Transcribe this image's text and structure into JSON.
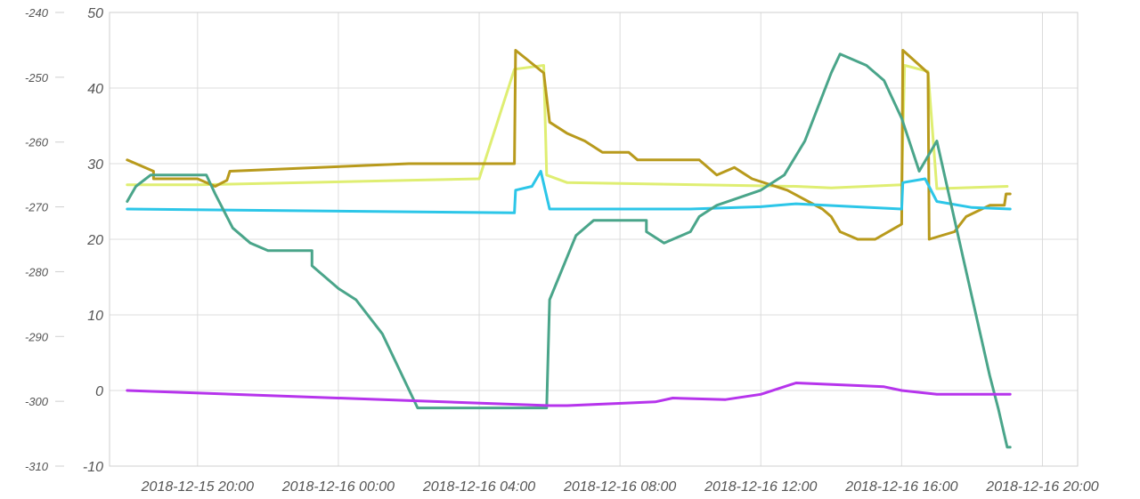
{
  "chart_data": {
    "type": "line",
    "title": "",
    "xlabel": "",
    "ylabel": "",
    "grid": true,
    "legend": "none",
    "x_unit": "time",
    "x_range": [
      "2018-12-15 17:30",
      "2018-12-16 21:00"
    ],
    "x_ticks": [
      "2018-12-15 20:00",
      "2018-12-16 00:00",
      "2018-12-16 04:00",
      "2018-12-16 08:00",
      "2018-12-16 12:00",
      "2018-12-16 16:00",
      "2018-12-16 20:00"
    ],
    "y_left": {
      "min": -310,
      "max": -240,
      "ticks": [
        "-240",
        "-250",
        "-260",
        "-270",
        "-280",
        "-290",
        "-300",
        "-310"
      ],
      "tick_values": [
        -240,
        -250,
        -260,
        -270,
        -280,
        -290,
        -300,
        -310
      ]
    },
    "y_right": {
      "min": -10,
      "max": 50,
      "ticks": [
        "50",
        "40",
        "30",
        "20",
        "10",
        "0",
        "-10"
      ],
      "tick_values": [
        50,
        40,
        30,
        20,
        10,
        0,
        -10
      ]
    },
    "series": [
      {
        "key": "light-yellow",
        "color": "#dfee72",
        "axis": "right",
        "points": [
          [
            "2018-12-15 18:00",
            27.2
          ],
          [
            "2018-12-15 20:00",
            27.2
          ],
          [
            "2018-12-16 04:00",
            28.0
          ],
          [
            "2018-12-16 05:00",
            42.5
          ],
          [
            "2018-12-16 05:50",
            43.0
          ],
          [
            "2018-12-16 05:55",
            28.5
          ],
          [
            "2018-12-16 06:30",
            27.5
          ],
          [
            "2018-12-16 13:00",
            27.0
          ],
          [
            "2018-12-16 14:00",
            26.8
          ],
          [
            "2018-12-16 16:00",
            27.2
          ],
          [
            "2018-12-16 16:05",
            43.0
          ],
          [
            "2018-12-16 16:45",
            42.2
          ],
          [
            "2018-12-16 17:00",
            26.7
          ],
          [
            "2018-12-16 19:00",
            27.0
          ]
        ]
      },
      {
        "key": "olive",
        "color": "#b89a1c",
        "axis": "right",
        "points": [
          [
            "2018-12-15 18:00",
            30.5
          ],
          [
            "2018-12-15 18:45",
            29.0
          ],
          [
            "2018-12-15 18:45",
            28.0
          ],
          [
            "2018-12-15 20:00",
            28.0
          ],
          [
            "2018-12-15 20:30",
            27.0
          ],
          [
            "2018-12-15 20:50",
            27.8
          ],
          [
            "2018-12-15 20:55",
            29.0
          ],
          [
            "2018-12-16 02:00",
            30.0
          ],
          [
            "2018-12-16 05:00",
            30.0
          ],
          [
            "2018-12-16 05:02",
            45.0
          ],
          [
            "2018-12-16 05:50",
            42.0
          ],
          [
            "2018-12-16 06:00",
            35.5
          ],
          [
            "2018-12-16 06:30",
            34.0
          ],
          [
            "2018-12-16 07:00",
            33.0
          ],
          [
            "2018-12-16 07:30",
            31.5
          ],
          [
            "2018-12-16 08:15",
            31.5
          ],
          [
            "2018-12-16 08:30",
            30.5
          ],
          [
            "2018-12-16 10:15",
            30.5
          ],
          [
            "2018-12-16 10:45",
            28.5
          ],
          [
            "2018-12-16 11:15",
            29.5
          ],
          [
            "2018-12-16 11:45",
            28.0
          ],
          [
            "2018-12-16 12:45",
            26.5
          ],
          [
            "2018-12-16 13:45",
            24.0
          ],
          [
            "2018-12-16 14:00",
            23.0
          ],
          [
            "2018-12-16 14:15",
            21.0
          ],
          [
            "2018-12-16 14:45",
            20.0
          ],
          [
            "2018-12-16 15:15",
            20.0
          ],
          [
            "2018-12-16 16:00",
            22.0
          ],
          [
            "2018-12-16 16:02",
            45.0
          ],
          [
            "2018-12-16 16:45",
            42.0
          ],
          [
            "2018-12-16 16:47",
            20.0
          ],
          [
            "2018-12-16 17:30",
            21.0
          ],
          [
            "2018-12-16 17:50",
            23.0
          ],
          [
            "2018-12-16 18:30",
            24.5
          ],
          [
            "2018-12-16 18:55",
            24.5
          ],
          [
            "2018-12-16 18:58",
            26.0
          ],
          [
            "2018-12-16 19:05",
            26.0
          ]
        ]
      },
      {
        "key": "cyan",
        "color": "#2cc6e8",
        "axis": "right",
        "points": [
          [
            "2018-12-15 18:00",
            24.0
          ],
          [
            "2018-12-16 05:00",
            23.5
          ],
          [
            "2018-12-16 05:02",
            26.5
          ],
          [
            "2018-12-16 05:30",
            27.0
          ],
          [
            "2018-12-16 05:45",
            29.0
          ],
          [
            "2018-12-16 06:00",
            24.0
          ],
          [
            "2018-12-16 10:00",
            24.0
          ],
          [
            "2018-12-16 12:00",
            24.3
          ],
          [
            "2018-12-16 13:00",
            24.7
          ],
          [
            "2018-12-16 16:00",
            24.0
          ],
          [
            "2018-12-16 16:02",
            27.5
          ],
          [
            "2018-12-16 16:40",
            28.0
          ],
          [
            "2018-12-16 17:00",
            25.0
          ],
          [
            "2018-12-16 18:00",
            24.2
          ],
          [
            "2018-12-16 19:05",
            24.0
          ]
        ]
      },
      {
        "key": "teal",
        "color": "#4aa58a",
        "axis": "right",
        "points": [
          [
            "2018-12-15 18:00",
            25.0
          ],
          [
            "2018-12-15 18:15",
            27.0
          ],
          [
            "2018-12-15 18:40",
            28.5
          ],
          [
            "2018-12-15 20:15",
            28.5
          ],
          [
            "2018-12-15 20:30",
            26.0
          ],
          [
            "2018-12-15 21:00",
            21.5
          ],
          [
            "2018-12-15 21:30",
            19.5
          ],
          [
            "2018-12-15 22:00",
            18.5
          ],
          [
            "2018-12-15 23:15",
            18.5
          ],
          [
            "2018-12-15 23:15",
            16.5
          ],
          [
            "2018-12-16 00:00",
            13.5
          ],
          [
            "2018-12-16 00:30",
            12.0
          ],
          [
            "2018-12-16 01:15",
            7.5
          ],
          [
            "2018-12-16 02:15",
            -2.3
          ],
          [
            "2018-12-16 05:55",
            -2.3
          ],
          [
            "2018-12-16 06:00",
            12.0
          ],
          [
            "2018-12-16 06:45",
            20.5
          ],
          [
            "2018-12-16 07:15",
            22.5
          ],
          [
            "2018-12-16 08:45",
            22.5
          ],
          [
            "2018-12-16 08:45",
            21.0
          ],
          [
            "2018-12-16 09:15",
            19.5
          ],
          [
            "2018-12-16 10:00",
            21.0
          ],
          [
            "2018-12-16 10:15",
            23.0
          ],
          [
            "2018-12-16 10:45",
            24.5
          ],
          [
            "2018-12-16 12:00",
            26.5
          ],
          [
            "2018-12-16 12:40",
            28.5
          ],
          [
            "2018-12-16 13:15",
            33.0
          ],
          [
            "2018-12-16 14:00",
            42.0
          ],
          [
            "2018-12-16 14:15",
            44.5
          ],
          [
            "2018-12-16 15:00",
            43.0
          ],
          [
            "2018-12-16 15:30",
            41.0
          ],
          [
            "2018-12-16 16:00",
            36.0
          ],
          [
            "2018-12-16 16:30",
            29.0
          ],
          [
            "2018-12-16 17:00",
            33.0
          ],
          [
            "2018-12-16 17:45",
            17.5
          ],
          [
            "2018-12-16 18:30",
            2.0
          ],
          [
            "2018-12-16 18:45",
            -2.5
          ],
          [
            "2018-12-16 19:00",
            -7.5
          ],
          [
            "2018-12-16 19:05",
            -7.5
          ]
        ]
      },
      {
        "key": "purple",
        "color": "#b634ec",
        "axis": "right",
        "points": [
          [
            "2018-12-15 18:00",
            0.0
          ],
          [
            "2018-12-16 06:00",
            -2.0
          ],
          [
            "2018-12-16 06:30",
            -2.0
          ],
          [
            "2018-12-16 09:00",
            -1.5
          ],
          [
            "2018-12-16 09:30",
            -1.0
          ],
          [
            "2018-12-16 11:00",
            -1.2
          ],
          [
            "2018-12-16 12:00",
            -0.5
          ],
          [
            "2018-12-16 13:00",
            1.0
          ],
          [
            "2018-12-16 15:30",
            0.5
          ],
          [
            "2018-12-16 16:00",
            0.0
          ],
          [
            "2018-12-16 17:00",
            -0.5
          ],
          [
            "2018-12-16 19:05",
            -0.5
          ]
        ]
      }
    ]
  }
}
